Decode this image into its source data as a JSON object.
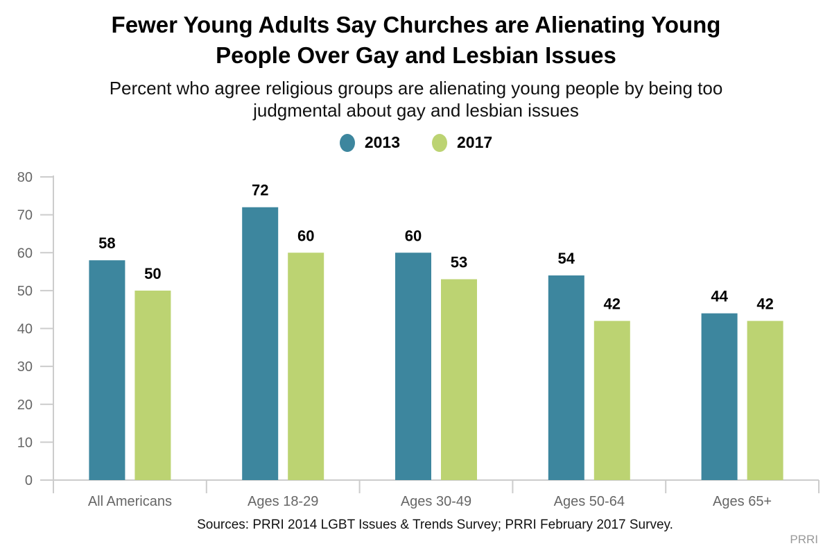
{
  "chart_data": {
    "type": "bar",
    "title": "Fewer Young Adults Say Churches are Alienating Young People Over Gay and Lesbian Issues",
    "subtitle": "Percent who agree religious groups are alienating young people by being too judgmental about gay and lesbian issues",
    "categories": [
      "All Americans",
      "Ages 18-29",
      "Ages 30-49",
      "Ages 50-64",
      "Ages 65+"
    ],
    "series": [
      {
        "name": "2013",
        "color": "#3d869e",
        "values": [
          58,
          72,
          60,
          54,
          44
        ]
      },
      {
        "name": "2017",
        "color": "#bcd372",
        "values": [
          50,
          60,
          53,
          42,
          42
        ]
      }
    ],
    "xlabel": "",
    "ylabel": "",
    "ylim": [
      0,
      80
    ],
    "yticks": [
      0,
      10,
      20,
      30,
      40,
      50,
      60,
      70,
      80
    ],
    "grid": false,
    "legend": "top-center",
    "data_labels": true
  },
  "title_lines": [
    "Fewer Young Adults Say Churches are Alienating Young",
    "People Over Gay and Lesbian Issues"
  ],
  "subtitle_lines": [
    "Percent who agree religious groups are alienating young people by being too",
    "judgmental about gay and lesbian issues"
  ],
  "source": "Sources: PRRI 2014 LGBT Issues & Trends Survey; PRRI February 2017 Survey.",
  "brand": "PRRI"
}
